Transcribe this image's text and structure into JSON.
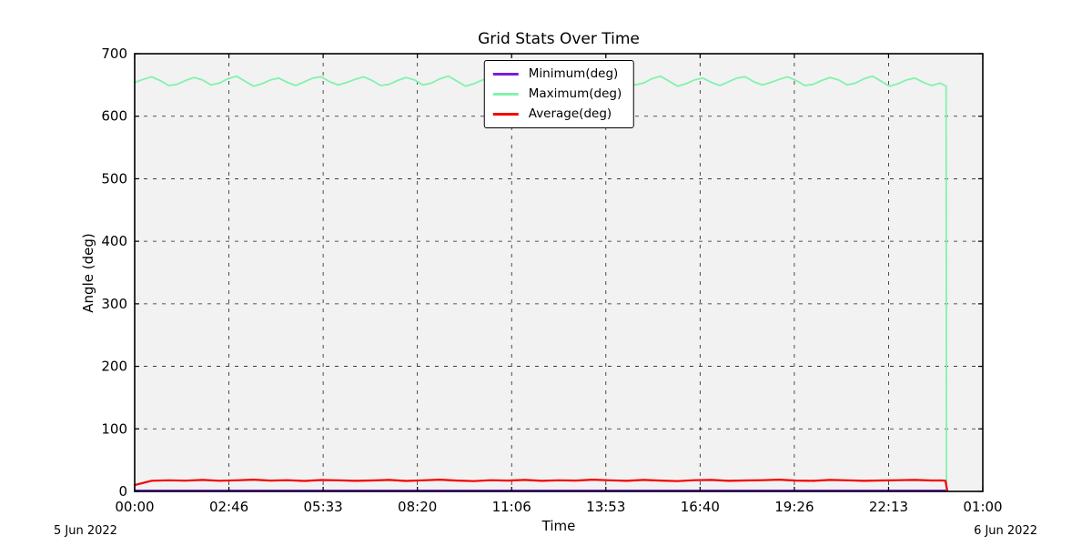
{
  "figure": {
    "title": "Grid Stats Over Time",
    "xlabel": "Time",
    "ylabel": "Angle (deg)",
    "date_left": "5 Jun 2022",
    "date_right": "6 Jun 2022"
  },
  "colors": {
    "figure_bg": "#ffffff",
    "plot_bg": "#f2f2f2",
    "grid": "#222222",
    "spine": "#000000",
    "text": "#000000"
  },
  "chart_data": {
    "type": "line",
    "title": "Grid Stats Over Time",
    "xlabel": "Time",
    "ylabel": "Angle (deg)",
    "xlim_hours": [
      0,
      25
    ],
    "ylim": [
      0,
      700
    ],
    "grid": true,
    "x_tick_hours": [
      0,
      2.7778,
      5.5556,
      8.3333,
      11.1111,
      13.8889,
      16.6667,
      19.4444,
      22.2222,
      25
    ],
    "x_tick_labels": [
      "00:00",
      "02:46",
      "05:33",
      "08:20",
      "11:06",
      "13:53",
      "16:40",
      "19:26",
      "22:13",
      "01:00"
    ],
    "y_ticks": [
      0,
      100,
      200,
      300,
      400,
      500,
      600,
      700
    ],
    "legend": {
      "position": "upper center"
    },
    "series": [
      {
        "name": "Minimum(deg)",
        "color": "#7a1edc",
        "width": 2,
        "t_start": 0,
        "t_step": 23.95,
        "values": [
          1.5,
          1.5
        ],
        "tail": []
      },
      {
        "name": "Maximum(deg)",
        "color": "#82f2ad",
        "width": 1.8,
        "t_start": 0,
        "t_step": 0.25,
        "values": [
          654,
          659,
          663,
          657,
          649,
          651,
          657,
          662,
          658,
          650,
          653,
          660,
          664,
          656,
          648,
          652,
          658,
          661,
          654,
          649,
          655,
          661,
          663,
          655,
          650,
          654,
          659,
          663,
          657,
          649,
          651,
          657,
          662,
          658,
          650,
          653,
          660,
          664,
          656,
          648,
          652,
          658,
          661,
          654,
          649,
          655,
          661,
          663,
          655,
          650,
          654,
          659,
          663,
          657,
          649,
          651,
          657,
          662,
          658,
          650,
          653,
          660,
          664,
          656,
          648,
          652,
          658,
          661,
          654,
          649,
          655,
          661,
          663,
          655,
          650,
          654,
          659,
          663,
          657,
          649,
          651,
          657,
          662,
          658,
          650,
          653,
          660,
          664,
          656,
          648,
          652,
          658,
          661,
          654,
          649,
          653
        ],
        "tail": [
          [
            23.85,
            650
          ],
          [
            23.92,
            648
          ],
          [
            23.93,
            2
          ]
        ]
      },
      {
        "name": "Average(deg)",
        "color": "#f20202",
        "width": 2.2,
        "t_start": 0,
        "t_step": 0.5,
        "values": [
          10,
          17,
          17.8,
          17.2,
          18.3,
          17,
          17.7,
          18.8,
          17.3,
          17.9,
          16.8,
          18.2,
          17.8,
          16.9,
          17.4,
          18.4,
          16.8,
          17.8,
          18.8,
          17.3,
          16.4,
          17.9,
          17.3,
          18.3,
          16.9,
          17.8,
          17.3,
          18.8,
          17.8,
          16.9,
          18.3,
          17.3,
          16.4,
          17.9,
          18.3,
          16.9,
          17.4,
          17.9,
          18.8,
          17.3,
          16.9,
          18.3,
          17.8,
          16.9,
          17.4,
          17.9,
          18.3,
          17.4
        ],
        "tail": [
          [
            23.8,
            17.5
          ],
          [
            23.9,
            17
          ],
          [
            23.95,
            1
          ]
        ]
      }
    ]
  }
}
